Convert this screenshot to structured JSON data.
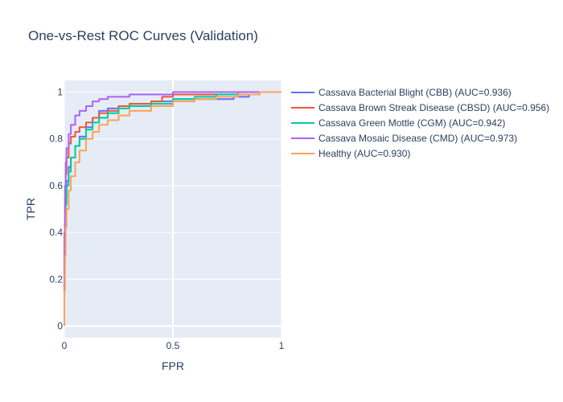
{
  "chart_data": {
    "type": "line",
    "title": "One-vs-Rest ROC Curves (Validation)",
    "xlabel": "FPR",
    "ylabel": "TPR",
    "xlim": [
      0,
      1
    ],
    "ylim": [
      -0.05,
      1.05
    ],
    "x_ticks": [
      0,
      0.5,
      1
    ],
    "x_tick_labels": [
      "0",
      "0.5",
      "1"
    ],
    "y_ticks": [
      0,
      0.2,
      0.4,
      0.6,
      0.8,
      1
    ],
    "y_tick_labels": [
      "0",
      "0.2",
      "0.4",
      "0.6",
      "0.8",
      "1"
    ],
    "grid": true,
    "legend_position": "right",
    "series": [
      {
        "name": "Cassava Bacterial Blight (CBB) (AUC=0.936)",
        "color": "#636efa",
        "points": [
          [
            0,
            0
          ],
          [
            0,
            0.3
          ],
          [
            0.003,
            0.45
          ],
          [
            0.006,
            0.55
          ],
          [
            0.01,
            0.62
          ],
          [
            0.02,
            0.68
          ],
          [
            0.03,
            0.72
          ],
          [
            0.05,
            0.77
          ],
          [
            0.07,
            0.81
          ],
          [
            0.1,
            0.85
          ],
          [
            0.13,
            0.89
          ],
          [
            0.16,
            0.92
          ],
          [
            0.2,
            0.93
          ],
          [
            0.25,
            0.94
          ],
          [
            0.3,
            0.95
          ],
          [
            0.4,
            0.96
          ],
          [
            0.5,
            0.97
          ],
          [
            0.6,
            0.97
          ],
          [
            0.7,
            0.97
          ],
          [
            0.78,
            0.98
          ],
          [
            0.85,
            0.99
          ],
          [
            0.9,
            1.0
          ],
          [
            1.0,
            1.0
          ]
        ]
      },
      {
        "name": "Cassava Brown Streak Disease (CBSD) (AUC=0.956)",
        "color": "#ef553b",
        "points": [
          [
            0,
            0
          ],
          [
            0,
            0.35
          ],
          [
            0.003,
            0.55
          ],
          [
            0.006,
            0.65
          ],
          [
            0.01,
            0.72
          ],
          [
            0.02,
            0.78
          ],
          [
            0.03,
            0.81
          ],
          [
            0.05,
            0.83
          ],
          [
            0.07,
            0.85
          ],
          [
            0.1,
            0.87
          ],
          [
            0.13,
            0.89
          ],
          [
            0.16,
            0.91
          ],
          [
            0.2,
            0.92
          ],
          [
            0.25,
            0.94
          ],
          [
            0.3,
            0.95
          ],
          [
            0.4,
            0.96
          ],
          [
            0.45,
            0.98
          ],
          [
            0.5,
            0.99
          ],
          [
            0.6,
            0.99
          ],
          [
            0.8,
            1.0
          ],
          [
            1.0,
            1.0
          ]
        ]
      },
      {
        "name": "Cassava Green Mottle (CGM) (AUC=0.942)",
        "color": "#00cc96",
        "points": [
          [
            0,
            0
          ],
          [
            0,
            0.28
          ],
          [
            0.003,
            0.42
          ],
          [
            0.006,
            0.52
          ],
          [
            0.01,
            0.6
          ],
          [
            0.02,
            0.66
          ],
          [
            0.03,
            0.72
          ],
          [
            0.05,
            0.77
          ],
          [
            0.07,
            0.8
          ],
          [
            0.1,
            0.84
          ],
          [
            0.13,
            0.87
          ],
          [
            0.16,
            0.89
          ],
          [
            0.2,
            0.91
          ],
          [
            0.25,
            0.93
          ],
          [
            0.3,
            0.94
          ],
          [
            0.4,
            0.95
          ],
          [
            0.5,
            0.97
          ],
          [
            0.6,
            0.98
          ],
          [
            0.7,
            0.99
          ],
          [
            0.8,
            0.99
          ],
          [
            0.9,
            1.0
          ],
          [
            1.0,
            1.0
          ]
        ]
      },
      {
        "name": "Cassava Mosaic Disease (CMD) (AUC=0.973)",
        "color": "#ab63fa",
        "points": [
          [
            0,
            0
          ],
          [
            0,
            0.4
          ],
          [
            0.003,
            0.6
          ],
          [
            0.006,
            0.7
          ],
          [
            0.01,
            0.76
          ],
          [
            0.02,
            0.82
          ],
          [
            0.03,
            0.86
          ],
          [
            0.05,
            0.9
          ],
          [
            0.07,
            0.92
          ],
          [
            0.1,
            0.94
          ],
          [
            0.13,
            0.96
          ],
          [
            0.16,
            0.97
          ],
          [
            0.2,
            0.98
          ],
          [
            0.3,
            0.99
          ],
          [
            0.5,
            1.0
          ],
          [
            1.0,
            1.0
          ]
        ]
      },
      {
        "name": "Healthy (AUC=0.930)",
        "color": "#ffa15a",
        "points": [
          [
            0,
            0
          ],
          [
            0,
            0.15
          ],
          [
            0.003,
            0.3
          ],
          [
            0.006,
            0.42
          ],
          [
            0.01,
            0.5
          ],
          [
            0.02,
            0.58
          ],
          [
            0.03,
            0.64
          ],
          [
            0.05,
            0.7
          ],
          [
            0.07,
            0.75
          ],
          [
            0.1,
            0.8
          ],
          [
            0.13,
            0.83
          ],
          [
            0.16,
            0.86
          ],
          [
            0.2,
            0.88
          ],
          [
            0.25,
            0.9
          ],
          [
            0.3,
            0.92
          ],
          [
            0.4,
            0.94
          ],
          [
            0.5,
            0.96
          ],
          [
            0.6,
            0.97
          ],
          [
            0.7,
            0.98
          ],
          [
            0.8,
            0.99
          ],
          [
            0.9,
            1.0
          ],
          [
            1.0,
            1.0
          ]
        ]
      }
    ]
  }
}
